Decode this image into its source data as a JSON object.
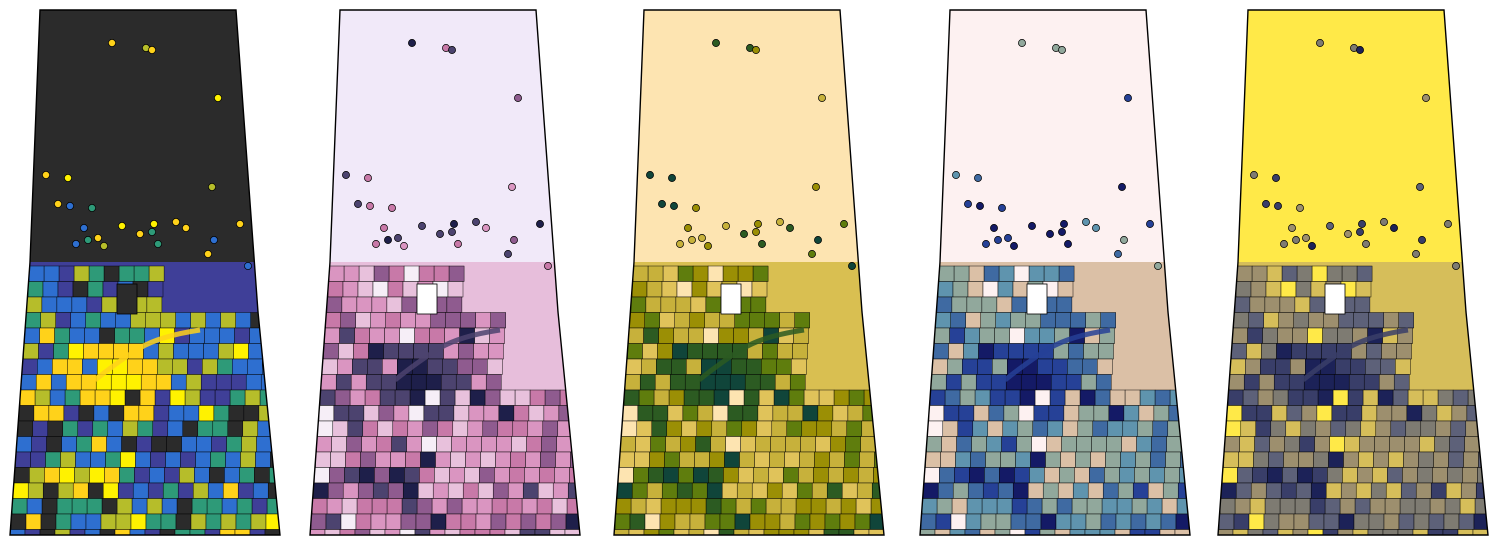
{
  "figure": {
    "maps": [
      {
        "id": "map-1",
        "palette_name": "viridis-like",
        "north_background": "#2b2b2b",
        "south_background": "#3f3f98",
        "colors": [
          "#2b2b2b",
          "#3f3f98",
          "#2e6fd0",
          "#2e9a78",
          "#b6bd2a",
          "#ffd21a",
          "#fff200"
        ]
      },
      {
        "id": "map-2",
        "palette_name": "pink-purple",
        "north_background": "#f1e9f9",
        "south_background": "#e7bedb",
        "colors": [
          "#f6eef7",
          "#e8c1dc",
          "#da95c1",
          "#c879a8",
          "#8f5b8f",
          "#4c436f",
          "#1e1f4a"
        ]
      },
      {
        "id": "map-3",
        "palette_name": "olive-green",
        "north_background": "#fde4b1",
        "south_background": "#d9bf51",
        "colors": [
          "#fde4b1",
          "#e0c35a",
          "#c7b13b",
          "#9b8f05",
          "#5f7d0d",
          "#2c5b22",
          "#10453a"
        ]
      },
      {
        "id": "map-4",
        "palette_name": "tan-blue",
        "north_background": "#fdf1f1",
        "south_background": "#dbc0a6",
        "colors": [
          "#fdf1f1",
          "#dbc0a6",
          "#91a89c",
          "#5f94ae",
          "#3f6aa2",
          "#264197",
          "#141a66"
        ]
      },
      {
        "id": "map-5",
        "palette_name": "yellow-gray-navy",
        "north_background": "#ffe948",
        "south_background": "#d6be5a",
        "colors": [
          "#ffe948",
          "#d6be5a",
          "#9d8f6e",
          "#7e7b72",
          "#5d6179",
          "#393e69",
          "#1c2258"
        ]
      }
    ],
    "outline_color": "#000000",
    "reserve_fill": "#ffffff"
  }
}
